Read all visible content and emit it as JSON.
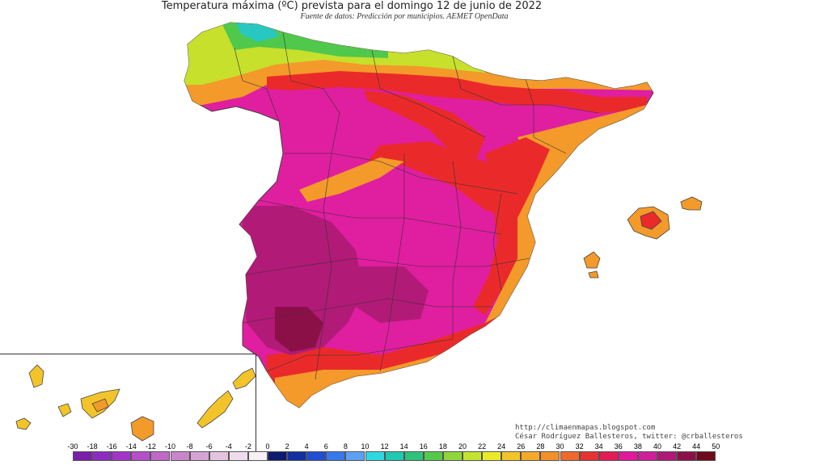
{
  "title": "Temperatura máxima (ºC) prevista para el domingo 12 de junio de 2022",
  "subtitle": "Fuente de datos: Predicción por municipios. AEMET OpenData",
  "credits": {
    "line1": "http://climaenmapas.blogspot.com",
    "line2": "César Rodríguez Ballesteros, twitter: @crballesteros"
  },
  "legend": {
    "ticks": [
      "-30",
      "-18",
      "-16",
      "-14",
      "-12",
      "-10",
      "-8",
      "-6",
      "-4",
      "-2",
      "0",
      "2",
      "4",
      "6",
      "8",
      "10",
      "12",
      "14",
      "16",
      "18",
      "20",
      "22",
      "24",
      "26",
      "28",
      "30",
      "32",
      "34",
      "36",
      "38",
      "40",
      "42",
      "44",
      "50"
    ],
    "colors": [
      "#7a1fa8",
      "#8e2bbf",
      "#a235c8",
      "#b64ec9",
      "#c068c6",
      "#c985c9",
      "#d7a3d4",
      "#e3c4e0",
      "#eedcec",
      "#f7f0f6",
      "#0d1a6e",
      "#14309e",
      "#1f4fd0",
      "#3778ea",
      "#5da0f2",
      "#2ed8e0",
      "#20c8b0",
      "#2fc27a",
      "#57c94a",
      "#8fd63a",
      "#c4e32f",
      "#eaea2a",
      "#f3c42a",
      "#f3a92a",
      "#f1902b",
      "#ee6a2c",
      "#e53232",
      "#e21a55",
      "#e01a9a",
      "#cf1f9a",
      "#ae1a76",
      "#8c1048",
      "#6e0a1a"
    ]
  },
  "regions": {
    "peninsula": "Península Ibérica",
    "balearics": "Islas Baleares",
    "canarias": "Islas Canarias"
  },
  "colors": {
    "hot_magenta": "#e01ea0",
    "very_hot": "#b21a78",
    "red": "#ea2a2a",
    "orange": "#f39a2a",
    "yellow_green": "#c7e02c",
    "green": "#4fc84c",
    "cyan": "#28c7c0"
  }
}
